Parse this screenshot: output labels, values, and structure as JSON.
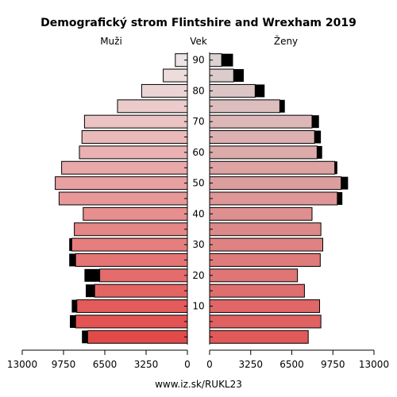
{
  "chart_data": {
    "type": "bar",
    "orientation": "horizontal-population-pyramid",
    "title": "Demografický strom Flintshire and Wrexham 2019",
    "left_label": "Muži",
    "center_label": "Vek",
    "right_label": "Ženy",
    "footer": "www.iz.sk/RUKL23",
    "x_ticks_left": [
      "13000",
      "9750",
      "6500",
      "3250",
      "0"
    ],
    "x_ticks_right": [
      "0",
      "3250",
      "6500",
      "9750",
      "13000"
    ],
    "x_max": 13000,
    "age_tick_labels": [
      "10",
      "20",
      "30",
      "40",
      "50",
      "60",
      "70",
      "80",
      "90"
    ],
    "age_groups": [
      "0-4",
      "5-9",
      "10-14",
      "15-19",
      "20-24",
      "25-29",
      "30-34",
      "35-39",
      "40-44",
      "45-49",
      "50-54",
      "55-59",
      "60-64",
      "65-69",
      "70-74",
      "75-79",
      "80-84",
      "85-89",
      "90+"
    ],
    "series": [
      {
        "name": "Muži",
        "values": [
          7850,
          8800,
          8700,
          7300,
          6900,
          8800,
          9100,
          8900,
          8200,
          10100,
          10400,
          9900,
          8500,
          8300,
          8100,
          5500,
          3600,
          1900,
          950
        ],
        "excess": [
          450,
          450,
          400,
          700,
          1200,
          500,
          200,
          0,
          0,
          0,
          0,
          0,
          0,
          0,
          0,
          0,
          0,
          0,
          0
        ]
      },
      {
        "name": "Ženy",
        "values": [
          7800,
          8800,
          8700,
          7500,
          6950,
          8750,
          8950,
          8800,
          8100,
          10100,
          10400,
          9900,
          8500,
          8300,
          8100,
          5550,
          3600,
          1900,
          950
        ],
        "excess": [
          0,
          0,
          0,
          0,
          0,
          0,
          0,
          0,
          0,
          400,
          550,
          200,
          400,
          500,
          550,
          400,
          750,
          800,
          900
        ]
      }
    ],
    "colors": {
      "male_young": "#e24a4a",
      "male_old": "#ede5e5",
      "female_young": "#e05a5a",
      "female_old": "#dcd2d2",
      "excess": "#000000"
    }
  }
}
